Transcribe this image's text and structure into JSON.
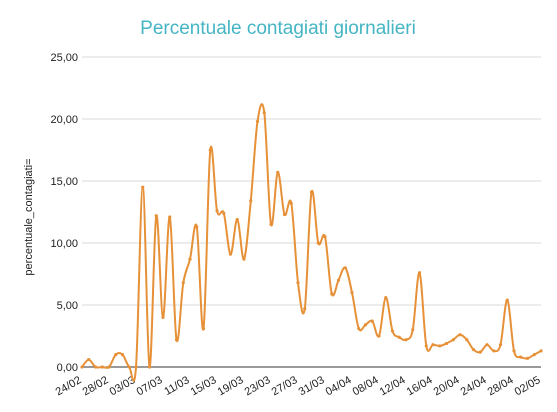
{
  "chart_data": {
    "type": "line",
    "title": "Percentuale contagiati giornalieri",
    "ylabel": "percentuale_contagiati=",
    "xlabel": "",
    "ylim": [
      0,
      25
    ],
    "yticks": [
      "0,00",
      "5,00",
      "10,00",
      "15,00",
      "20,00",
      "25,00"
    ],
    "ytick_values": [
      0,
      5,
      10,
      15,
      20,
      25
    ],
    "xtick_labels": [
      "24/02",
      "28/02",
      "03/03",
      "07/03",
      "11/03",
      "15/03",
      "19/03",
      "23/03",
      "27/03",
      "31/03",
      "04/04",
      "08/04",
      "12/04",
      "16/04",
      "20/04",
      "24/04",
      "28/04",
      "02/05"
    ],
    "xtick_indices": [
      0,
      4,
      8,
      12,
      16,
      20,
      24,
      28,
      32,
      36,
      40,
      44,
      48,
      52,
      56,
      60,
      64,
      68
    ],
    "grid": true,
    "legend": "none",
    "colors": {
      "line": "#e69138",
      "title": "#45b5c4"
    },
    "series": [
      {
        "values": [
          0.0,
          0.6,
          0.0,
          0.0,
          0.0,
          1.0,
          1.0,
          0.0,
          0.0,
          14.5,
          0.0,
          12.2,
          4.0,
          12.1,
          2.2,
          6.8,
          8.7,
          11.3,
          3.1,
          17.5,
          12.6,
          12.4,
          9.1,
          11.9,
          8.7,
          13.4,
          19.8,
          20.5,
          11.5,
          15.7,
          12.3,
          13.2,
          6.8,
          4.7,
          14.1,
          10.0,
          10.5,
          5.9,
          7.0,
          8.0,
          6.0,
          3.1,
          3.4,
          3.7,
          2.5,
          5.6,
          2.9,
          2.4,
          2.2,
          3.0,
          7.6,
          1.7,
          1.8,
          1.7,
          1.9,
          2.2,
          2.6,
          2.2,
          1.4,
          1.2,
          1.8,
          1.3,
          1.8,
          5.4,
          1.3,
          0.8,
          0.7,
          1.0,
          1.3
        ]
      }
    ]
  }
}
